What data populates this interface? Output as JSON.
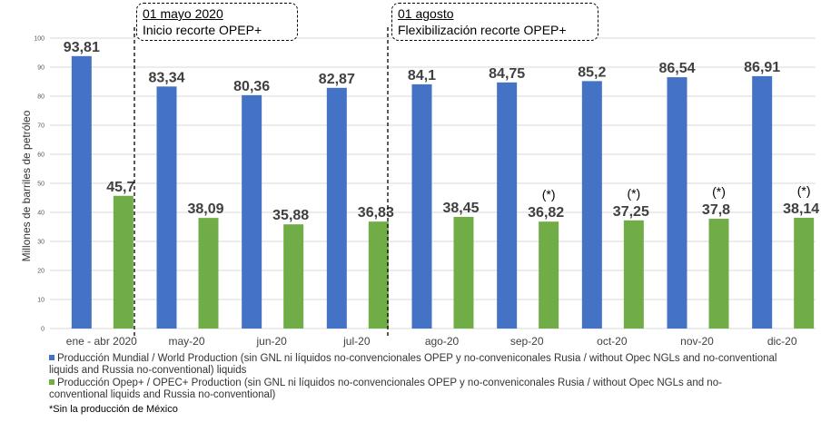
{
  "chart_data": {
    "type": "bar",
    "ylabel": "Millones de barriles de petróleo",
    "ylim": [
      0,
      100
    ],
    "yticks": [
      0,
      10,
      20,
      30,
      40,
      50,
      60,
      70,
      80,
      90,
      100
    ],
    "categories": [
      "ene - abr 2020",
      "may-20",
      "jun-20",
      "jul-20",
      "ago-20",
      "sep-20",
      "oct-20",
      "nov-20",
      "dic-20"
    ],
    "series": [
      {
        "name": "Producción Mundial / World Production (sin GNL ni líquidos no-convencionales OPEP y no-conveniconales Rusia / without Opec NGLs and no-conventional liquids and Russia no-conventional) liquids",
        "color": "#4472C4",
        "values": [
          93.81,
          83.34,
          80.36,
          82.87,
          84.1,
          84.75,
          85.2,
          86.54,
          86.91
        ],
        "labels": [
          "93,81",
          "83,34",
          "80,36",
          "82,87",
          "84,1",
          "84,75",
          "85,2",
          "86,54",
          "86,91"
        ]
      },
      {
        "name": "Producción Opep+ / OPEC+ Production (sin GNL ni líquidos no-convencionales OPEP y no-conveniconales Rusia / without Opec NGLs and no-conventional liquids and Russia no-conventional)",
        "color": "#70AD47",
        "values": [
          45.7,
          38.09,
          35.88,
          36.83,
          38.45,
          36.82,
          37.25,
          37.8,
          38.14
        ],
        "labels": [
          "45,7",
          "38,09",
          "35,88",
          "36,83",
          "38,45",
          "36,82",
          "37,25",
          "37,8",
          "38,14"
        ]
      }
    ],
    "asterisk_marks": [
      "",
      "",
      "",
      "",
      "",
      "(*)",
      "(*)",
      "(*)",
      "(*)"
    ],
    "grid": true,
    "legend": "bottom-left"
  },
  "callouts": [
    {
      "date": "01 mayo 2020",
      "text": "Inicio recorte OPEP+"
    },
    {
      "date": "01 agosto",
      "text": "Flexibilización recorte OPEP+"
    }
  ],
  "footnote": "*Sin la producción de México"
}
